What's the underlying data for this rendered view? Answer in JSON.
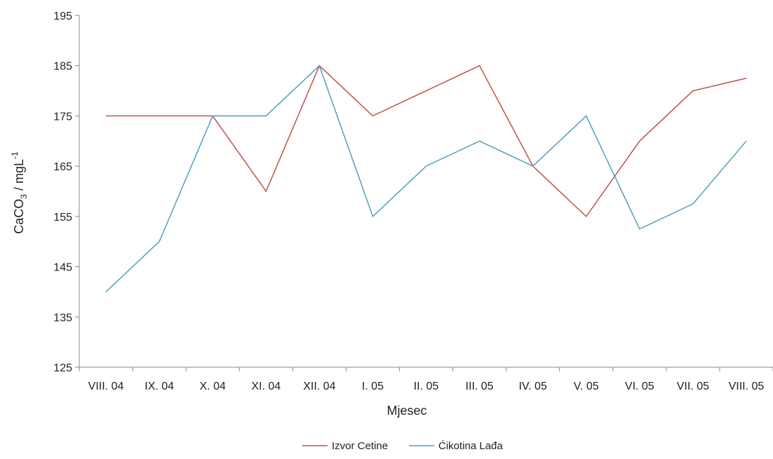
{
  "chart_data": {
    "type": "line",
    "categories": [
      "VIII. 04",
      "IX. 04",
      "X. 04",
      "XI. 04",
      "XII. 04",
      "I. 05",
      "II. 05",
      "III. 05",
      "IV. 05",
      "V. 05",
      "VI. 05",
      "VII. 05",
      "VIII. 05"
    ],
    "series": [
      {
        "name": "Izvor Cetine",
        "color": "#c0504d",
        "values": [
          175,
          175,
          175,
          160,
          185,
          175,
          180,
          185,
          165,
          155,
          170,
          180,
          182.5
        ]
      },
      {
        "name": "Ćikotina Lađa",
        "color": "#4f9fc6",
        "values": [
          140,
          150,
          175,
          175,
          185,
          155,
          165,
          170,
          165,
          175,
          152.5,
          157.5,
          170
        ]
      }
    ],
    "title": "",
    "xlabel": "Mjesec",
    "ylabel": {
      "main": "CaCO",
      "sub": "3",
      "unit": " / mgL",
      "sup": "-1"
    },
    "ylim": [
      125,
      195
    ],
    "yticks": [
      125,
      135,
      145,
      155,
      165,
      175,
      185,
      195
    ],
    "grid": false,
    "legend_position": "bottom-center"
  }
}
